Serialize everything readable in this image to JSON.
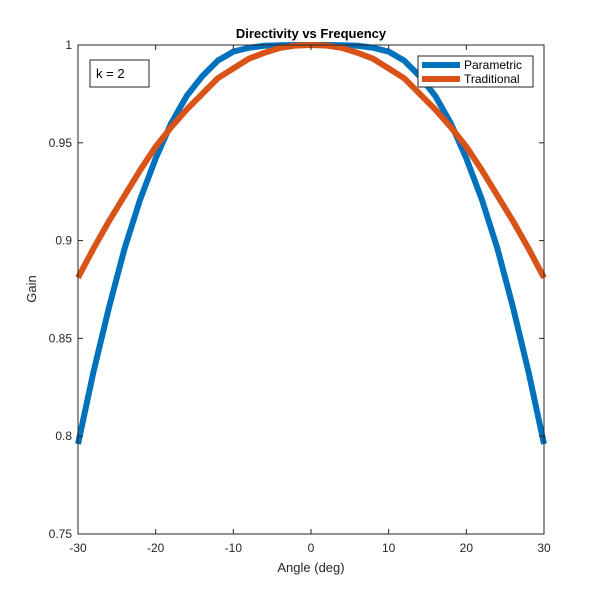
{
  "chart_data": {
    "type": "line",
    "title": "Directivity vs Frequency",
    "xlabel": "Angle (deg)",
    "ylabel": "Gain",
    "xlim": [
      -30,
      30
    ],
    "ylim": [
      0.75,
      1
    ],
    "xticks": [
      -30,
      -20,
      -10,
      0,
      10,
      20,
      30
    ],
    "xtick_labels": [
      "-30",
      "-20",
      "-10",
      "0",
      "10",
      "20",
      "30"
    ],
    "yticks": [
      0.75,
      0.8,
      0.85,
      0.9,
      0.95,
      1
    ],
    "ytick_labels": [
      "0.75",
      "0.8",
      "0.85",
      "0.9",
      "0.95",
      "1"
    ],
    "grid": false,
    "legend_position": "top-right",
    "annotation": "k = 2",
    "series": [
      {
        "name": "Parametric",
        "color": "#0072BD",
        "x": [
          -30,
          -28,
          -26,
          -24,
          -22,
          -20,
          -18,
          -16,
          -14,
          -12,
          -10,
          -8,
          -6,
          -4,
          -2,
          0,
          2,
          4,
          6,
          8,
          10,
          12,
          14,
          16,
          18,
          20,
          22,
          24,
          26,
          28,
          30
        ],
        "y": [
          0.796,
          0.833,
          0.866,
          0.896,
          0.921,
          0.942,
          0.96,
          0.974,
          0.984,
          0.992,
          0.9966,
          0.9986,
          0.9996,
          0.9999,
          1.0,
          1.0,
          1.0,
          0.9999,
          0.9996,
          0.9986,
          0.9966,
          0.992,
          0.984,
          0.974,
          0.96,
          0.942,
          0.921,
          0.896,
          0.866,
          0.833,
          0.796
        ]
      },
      {
        "name": "Traditional",
        "color": "#D95319",
        "x": [
          -30,
          -28,
          -26,
          -24,
          -22,
          -20,
          -18,
          -16,
          -14,
          -12,
          -10,
          -8,
          -6,
          -4,
          -2,
          0,
          2,
          4,
          6,
          8,
          10,
          12,
          14,
          16,
          18,
          20,
          22,
          24,
          26,
          28,
          30
        ],
        "y": [
          0.881,
          0.896,
          0.91,
          0.923,
          0.936,
          0.948,
          0.958,
          0.967,
          0.975,
          0.983,
          0.988,
          0.993,
          0.996,
          0.9985,
          0.9997,
          1.0,
          0.9997,
          0.9985,
          0.996,
          0.993,
          0.988,
          0.983,
          0.975,
          0.967,
          0.958,
          0.948,
          0.936,
          0.923,
          0.91,
          0.896,
          0.881
        ]
      }
    ]
  }
}
